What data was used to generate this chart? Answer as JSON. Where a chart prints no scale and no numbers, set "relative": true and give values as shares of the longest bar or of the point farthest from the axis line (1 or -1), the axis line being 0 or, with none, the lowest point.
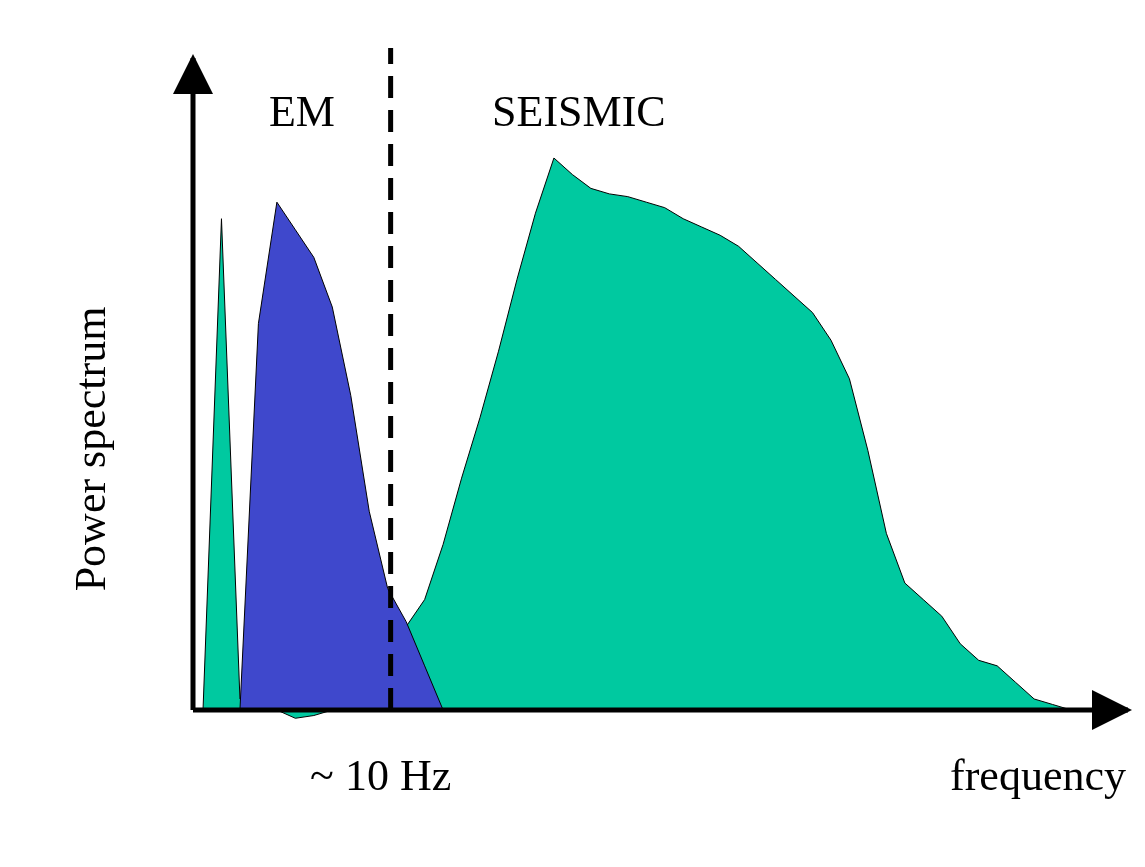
{
  "chart_data": {
    "type": "area",
    "relative": true,
    "xlabel": "frequency",
    "ylabel": "Power spectrum",
    "annotations": [
      "~ 10 Hz"
    ],
    "categories": [
      null,
      null,
      null,
      null,
      null,
      null,
      null,
      null,
      null,
      null,
      null,
      null,
      null,
      null,
      null,
      null,
      null,
      null,
      null,
      null,
      null,
      null,
      null,
      null,
      null,
      null,
      null,
      null,
      null,
      null,
      null,
      null,
      null,
      null,
      null,
      null,
      null,
      null,
      null,
      null,
      null,
      null,
      null,
      null,
      null,
      null,
      null,
      null
    ],
    "series": [
      {
        "name": "SEISMIC",
        "color": "#00c9a0",
        "values": [
          0,
          0.89,
          0.02,
          0,
          0,
          -0.015,
          -0.01,
          0,
          0.005,
          null,
          null,
          null,
          0.2,
          0.3,
          0.42,
          0.53,
          0.65,
          0.78,
          0.9,
          1,
          0.97,
          0.945,
          0.935,
          0.93,
          0.92,
          0.91,
          0.89,
          0.875,
          0.86,
          0.84,
          0.81,
          0.78,
          0.75,
          0.72,
          0.67,
          0.6,
          0.47,
          0.32,
          0.23,
          0.2,
          0.17,
          0.12,
          0.09,
          0.08,
          0.05,
          0.02,
          0.01,
          0
        ]
      },
      {
        "name": "EM",
        "color": "#3f48cc",
        "values": [
          null,
          null,
          0,
          0.7,
          0.92,
          0.87,
          0.82,
          0.73,
          0.57,
          0.36,
          0.22,
          0.16,
          0.08,
          0,
          null,
          null,
          null,
          null,
          null,
          null,
          null,
          null,
          null,
          null,
          null,
          null,
          null,
          null,
          null,
          null,
          null,
          null,
          null,
          null,
          null,
          null,
          null,
          null,
          null,
          null,
          null,
          null,
          null,
          null,
          null,
          null,
          null,
          null
        ]
      }
    ]
  }
}
